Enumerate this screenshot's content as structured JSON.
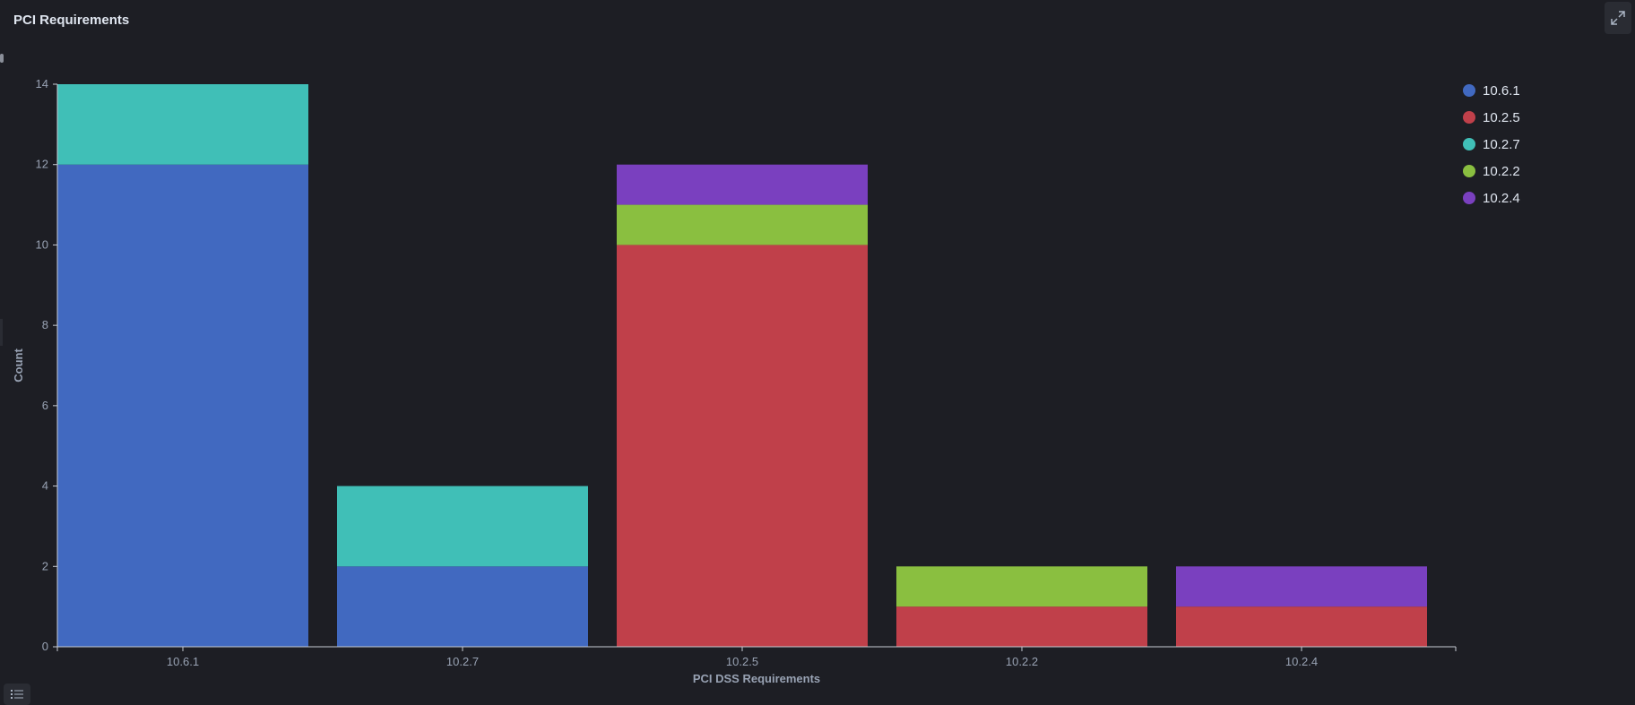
{
  "panel": {
    "title": "PCI Requirements"
  },
  "icons": {
    "fullscreen": "expand-icon",
    "legend_toggle": "list-icon"
  },
  "chart_data": {
    "type": "bar",
    "stacked": true,
    "categories": [
      "10.6.1",
      "10.2.7",
      "10.2.5",
      "10.2.2",
      "10.2.4"
    ],
    "series": [
      {
        "name": "10.6.1",
        "color": "#4169c0",
        "values": [
          12,
          2,
          0,
          0,
          0
        ]
      },
      {
        "name": "10.2.5",
        "color": "#c0404a",
        "values": [
          0,
          0,
          10,
          1,
          1
        ]
      },
      {
        "name": "10.2.7",
        "color": "#40bfb7",
        "values": [
          2,
          2,
          0,
          0,
          0
        ]
      },
      {
        "name": "10.2.2",
        "color": "#8abf40",
        "values": [
          0,
          0,
          1,
          1,
          0
        ]
      },
      {
        "name": "10.2.4",
        "color": "#7a40bf",
        "values": [
          0,
          0,
          1,
          0,
          1
        ]
      }
    ],
    "xlabel": "PCI DSS Requirements",
    "ylabel": "Count",
    "ylim": [
      0,
      14
    ],
    "yticks": [
      0,
      2,
      4,
      6,
      8,
      10,
      12,
      14
    ],
    "grid": false,
    "legend": "top-right"
  }
}
